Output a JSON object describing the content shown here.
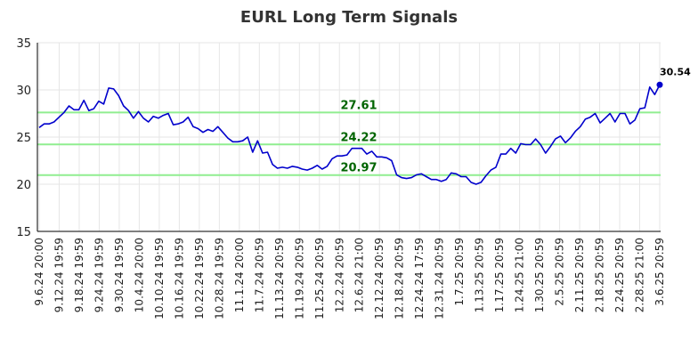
{
  "chart_data": {
    "type": "line",
    "title": "EURL Long Term Signals",
    "xlabel": "",
    "ylabel": "",
    "ylim": [
      15,
      35
    ],
    "yticks": [
      "15",
      "20",
      "25",
      "30",
      "35"
    ],
    "grid": true,
    "legend": "none",
    "colors": {
      "line": "#0000cc",
      "level_line": "#90ee90",
      "level_text": "#006400",
      "grid": "#e6e6e6"
    },
    "x_tick_labels": [
      "9.6.24 20:00",
      "9.12.24 19:59",
      "9.18.24 19:59",
      "9.24.24 19:59",
      "9.30.24 19:59",
      "10.4.24 20:00",
      "10.10.24 19:59",
      "10.16.24 19:59",
      "10.22.24 19:59",
      "10.28.24 19:59",
      "11.1.24 20:00",
      "11.7.24 20:59",
      "11.13.24 20:59",
      "11.19.24 20:59",
      "11.25.24 20:59",
      "12.2.24 20:59",
      "12.6.24 21:00",
      "12.12.24 20:59",
      "12.18.24 20:59",
      "12.24.24 17:59",
      "12.31.24 20:59",
      "1.7.25 20:59",
      "1.13.25 20:59",
      "1.17.25 20:59",
      "1.24.25 21:00",
      "1.30.25 20:59",
      "2.5.25 20:59",
      "2.11.25 20:59",
      "2.18.25 20:59",
      "2.24.25 20:59",
      "2.28.25 21:00",
      "3.6.25 20:59"
    ],
    "values": [
      26.0,
      26.4,
      26.4,
      26.6,
      27.1,
      27.6,
      28.3,
      27.9,
      27.9,
      28.9,
      27.8,
      28.0,
      28.8,
      28.5,
      30.2,
      30.1,
      29.4,
      28.3,
      27.8,
      27.0,
      27.7,
      27.0,
      26.6,
      27.2,
      27.0,
      27.3,
      27.5,
      26.3,
      26.4,
      26.6,
      27.1,
      26.1,
      25.9,
      25.5,
      25.8,
      25.6,
      26.1,
      25.5,
      24.9,
      24.5,
      24.5,
      24.6,
      25.0,
      23.4,
      24.6,
      23.3,
      23.4,
      22.1,
      21.7,
      21.8,
      21.7,
      21.9,
      21.8,
      21.6,
      21.5,
      21.7,
      22.0,
      21.6,
      21.9,
      22.7,
      23.0,
      23.0,
      23.1,
      23.8,
      23.8,
      23.8,
      23.2,
      23.5,
      22.9,
      22.9,
      22.8,
      22.5,
      21.0,
      20.7,
      20.6,
      20.7,
      21.0,
      21.1,
      20.8,
      20.5,
      20.5,
      20.3,
      20.5,
      21.2,
      21.1,
      20.8,
      20.8,
      20.2,
      20.0,
      20.2,
      20.9,
      21.5,
      21.8,
      23.2,
      23.2,
      23.8,
      23.3,
      24.3,
      24.2,
      24.2,
      24.8,
      24.2,
      23.3,
      24.0,
      24.8,
      25.1,
      24.4,
      24.9,
      25.6,
      26.1,
      26.9,
      27.1,
      27.5,
      26.5,
      27.0,
      27.5,
      26.6,
      27.5,
      27.5,
      26.4,
      26.8,
      28.0,
      28.1,
      30.3,
      29.5,
      30.54
    ],
    "levels": [
      {
        "value": 27.61,
        "label": "27.61"
      },
      {
        "value": 24.22,
        "label": "24.22"
      },
      {
        "value": 20.97,
        "label": "20.97"
      }
    ],
    "last_value_label": "30.54"
  }
}
